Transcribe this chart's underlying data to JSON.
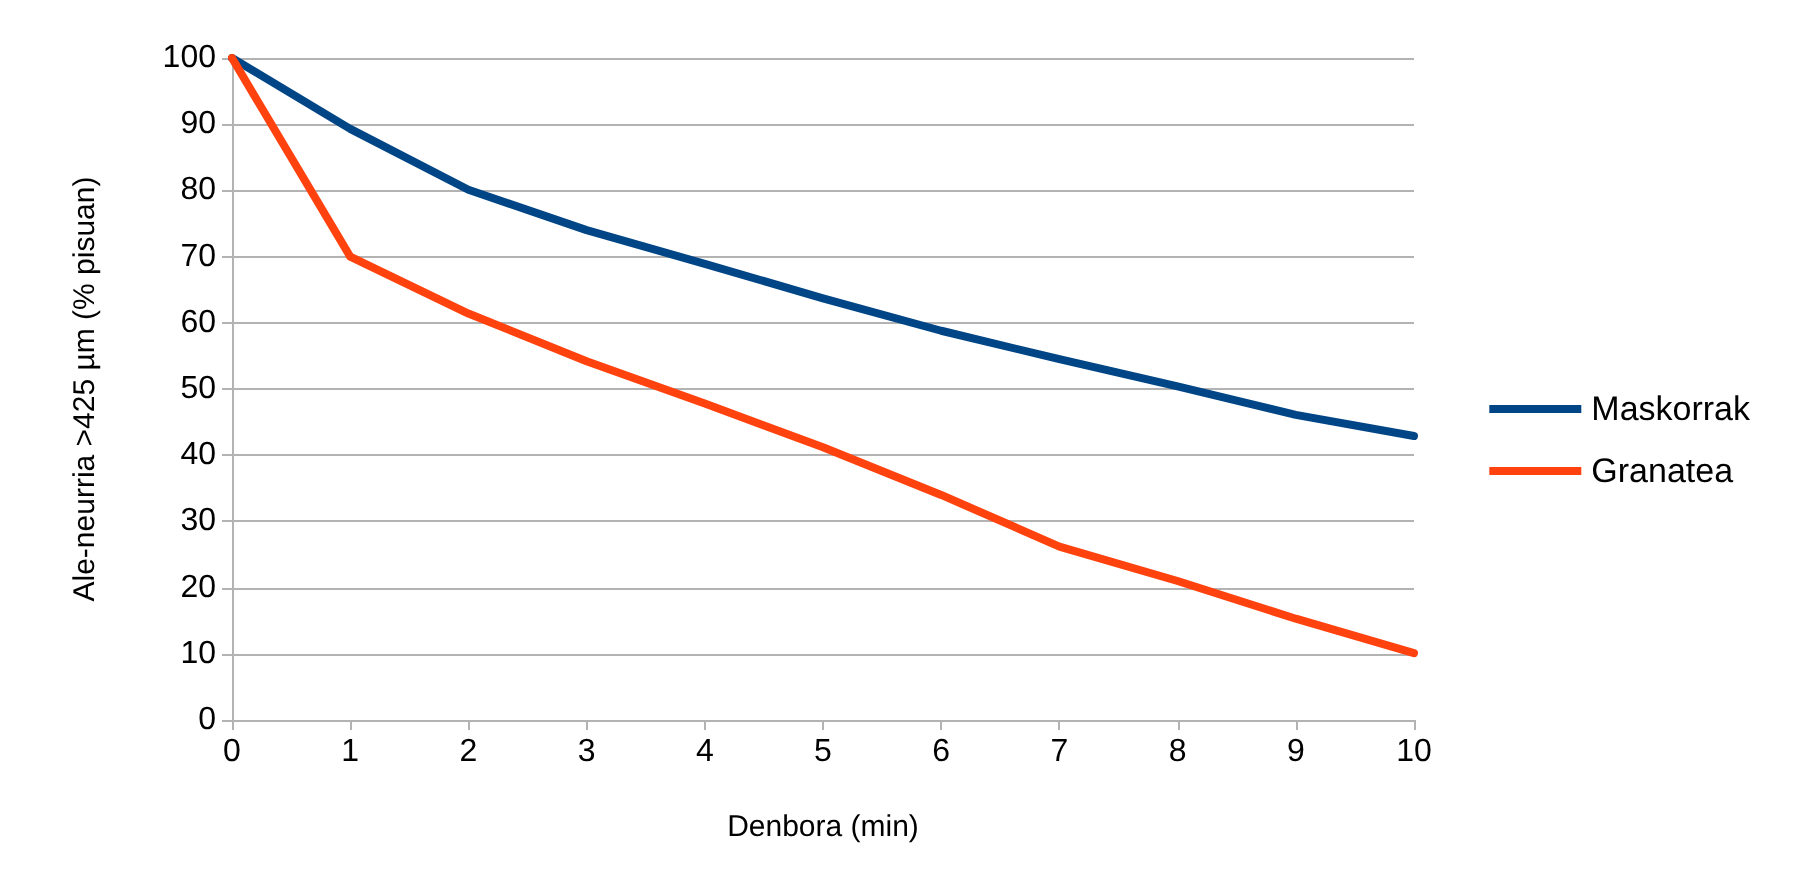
{
  "chart_data": {
    "type": "line",
    "xlabel": "Denbora (min)",
    "ylabel": "Ale-neurria >425 µm (% pisuan)",
    "x": [
      0,
      1,
      2,
      3,
      4,
      5,
      6,
      7,
      8,
      9,
      10
    ],
    "series": [
      {
        "name": "Maskorrak",
        "color": "#004586",
        "values": [
          100,
          89.3,
          80.1,
          74,
          68.9,
          63.7,
          58.8,
          54.5,
          50.4,
          46.1,
          42.9
        ]
      },
      {
        "name": "Granatea",
        "color": "#ff420e",
        "values": [
          100,
          70,
          61.4,
          54.2,
          47.8,
          41.2,
          34,
          26.2,
          21,
          15.3,
          10.1
        ]
      }
    ],
    "xlim": [
      0,
      10
    ],
    "xticks": [
      0,
      1,
      2,
      3,
      4,
      5,
      6,
      7,
      8,
      9,
      10
    ],
    "ylim": [
      0,
      100
    ],
    "yticks": [
      0,
      10,
      20,
      30,
      40,
      50,
      60,
      70,
      80,
      90,
      100
    ],
    "grid": "y",
    "legend": "right",
    "marker": "none",
    "line_style": "solid"
  }
}
